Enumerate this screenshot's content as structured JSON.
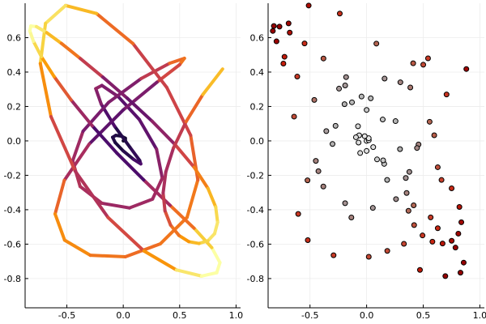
{
  "figure": {
    "background": "#ffffff",
    "grid_color": "#ececec",
    "axis_color": "#000000"
  },
  "chart_data": [
    {
      "type": "line",
      "title": "",
      "xlabel": "",
      "ylabel": "",
      "grid": true,
      "legend": "none",
      "xlim": [
        -0.87,
        1.04
      ],
      "ylim": [
        -0.97,
        0.8
      ],
      "xticks": [
        -0.5,
        0.0,
        0.5,
        1.0
      ],
      "yticks": [
        -0.8,
        -0.6,
        -0.4,
        -0.2,
        0.0,
        0.2,
        0.4,
        0.6
      ],
      "xtick_labels": [
        "-0.5",
        "0.0",
        "0.5",
        "1.0"
      ],
      "ytick_labels": [
        "-0.8",
        "-0.6",
        "-0.4",
        "-0.2",
        "0.0",
        "0.2",
        "0.4",
        "0.6"
      ],
      "line_width": "thick",
      "colormap": "inferno",
      "color_by": "radius",
      "curve": "Archimedean spiral r = t, theta = 6*pi*t, t from 0 to 1",
      "series": [
        {
          "x": [
            0.0,
            0.0188,
            0.0184,
            -0.0171,
            -0.0659,
            -0.0942,
            -0.0713,
            0.0,
            0.0922,
            0.1553,
            0.1457,
            0.0582,
            -0.0761,
            -0.195,
            -0.2436,
            -0.1895,
            -0.0448,
            0.1422,
            0.2949,
            0.346,
            0.2596,
            0.055,
            -0.19,
            -0.3823,
            -0.4485,
            -0.3561,
            -0.1294,
            0.1586,
            0.4111,
            0.5424,
            0.5002,
            0.2981,
            0.0,
            -0.3012,
            -0.5222,
            -0.6041,
            -0.5197,
            -0.292,
            0.0189,
            0.3294,
            0.5656,
            0.6614,
            0.5971,
            0.3859,
            0.0861,
            -0.237,
            -0.5117,
            -0.6891,
            -0.735,
            -0.6406,
            -0.4257,
            -0.1347,
            0.1825,
            0.471,
            0.6952,
            0.8289,
            0.8572,
            0.7847,
            0.6282,
            0.4154,
            0.1812,
            -0.057,
            -0.2744,
            -0.4621,
            -0.6126,
            -0.7252,
            -0.796,
            -0.8282,
            -0.8192,
            -0.7695,
            -0.6791,
            -0.5481,
            -0.3811,
            -0.1812,
            0.0363,
            0.2553,
            0.4584,
            0.6281,
            0.7506,
            0.8194,
            0.8365,
            0.81,
            0.751,
            0.6707,
            0.5811,
            0.4936,
            0.4195,
            0.3698,
            0.3534,
            0.3774,
            0.445,
            0.5564,
            0.706,
            0.8807,
            1.0
          ],
          "y": [
            0.0,
            0.0041,
            0.0154,
            0.0276,
            0.032,
            0.0212,
            -0.0096,
            -0.0583,
            -0.1076,
            -0.1336,
            -0.1133,
            -0.0361,
            0.0849,
            0.2133,
            0.3037,
            0.3223,
            0.2578,
            0.1243,
            -0.0478,
            -0.2158,
            -0.3384,
            -0.3895,
            -0.3622,
            -0.2649,
            -0.1161,
            0.0567,
            0.2242,
            0.362,
            0.4512,
            0.48,
            0.4429,
            0.3407,
            0.18,
            -0.018,
            -0.2292,
            -0.4246,
            -0.5768,
            -0.6645,
            -0.6735,
            -0.598,
            -0.4444,
            -0.227,
            0.0327,
            0.3105,
            0.5654,
            0.7401,
            0.7867,
            0.683,
            0.4493,
            0.1412,
            -0.176,
            -0.4451,
            -0.6393,
            -0.7499,
            -0.7858,
            -0.7659,
            -0.7073,
            -0.6201,
            -0.5076,
            -0.3746,
            -0.2268,
            -0.0705,
            0.0875,
            0.238,
            0.3738,
            0.4889,
            0.5785,
            0.639,
            0.6677,
            0.664,
            0.6295,
            0.5665,
            0.4789,
            0.3707,
            0.2475,
            0.1148,
            -0.0207,
            -0.153,
            -0.2758,
            -0.3838,
            -0.4727,
            -0.539,
            -0.5806,
            -0.5962,
            -0.5856,
            -0.5495,
            -0.4892,
            -0.4063,
            -0.3026,
            -0.1801,
            -0.0412,
            0.1112,
            0.2698,
            0.4177,
            0.0
          ]
        }
      ]
    },
    {
      "type": "scatter",
      "title": "",
      "xlabel": "",
      "ylabel": "",
      "grid": true,
      "legend": "none",
      "xlim": [
        -0.87,
        1.04
      ],
      "ylim": [
        -0.97,
        0.8
      ],
      "xticks": [
        -0.5,
        0.0,
        0.5,
        1.0
      ],
      "yticks": [
        -0.8,
        -0.6,
        -0.4,
        -0.2,
        0.0,
        0.2,
        0.4,
        0.6
      ],
      "xtick_labels": [
        "-0.5",
        "0.0",
        "0.5",
        "1.0"
      ],
      "ytick_labels": [
        "-0.8",
        "-0.6",
        "-0.4",
        "-0.2",
        "0.0",
        "0.2",
        "0.4",
        "0.6"
      ],
      "marker": "circle",
      "marker_edge_color": "#000000",
      "colormap": "grayscale-to-red",
      "color_by": "radius",
      "curve": "Archimedean spiral r = t, theta = 6*pi*t, t from 0 to 1",
      "series": [
        {
          "x": [
            0.0,
            0.0188,
            0.0184,
            -0.0171,
            -0.0659,
            -0.0942,
            -0.0713,
            0.0,
            0.0922,
            0.1553,
            0.1457,
            0.0582,
            -0.0761,
            -0.195,
            -0.2436,
            -0.1895,
            -0.0448,
            0.1422,
            0.2949,
            0.346,
            0.2596,
            0.055,
            -0.19,
            -0.3823,
            -0.4485,
            -0.3561,
            -0.1294,
            0.1586,
            0.4111,
            0.5424,
            0.5002,
            0.2981,
            0.0,
            -0.3012,
            -0.5222,
            -0.6041,
            -0.5197,
            -0.292,
            0.0189,
            0.3294,
            0.5656,
            0.6614,
            0.5971,
            0.3859,
            0.0861,
            -0.237,
            -0.5117,
            -0.6891,
            -0.735,
            -0.6406,
            -0.4257,
            -0.1347,
            0.1825,
            0.471,
            0.6952,
            0.8289,
            0.8572,
            0.7847,
            0.6282,
            0.4154,
            0.1812,
            -0.057,
            -0.2744,
            -0.4621,
            -0.6126,
            -0.7252,
            -0.796,
            -0.8282,
            -0.8192,
            -0.7695,
            -0.6791,
            -0.5481,
            -0.3811,
            -0.1812,
            0.0363,
            0.2553,
            0.4584,
            0.6281,
            0.7506,
            0.8194,
            0.8365,
            0.81,
            0.751,
            0.6707,
            0.5811,
            0.4936,
            0.4195,
            0.3698,
            0.3534,
            0.3774,
            0.445,
            0.5564,
            0.706,
            0.8807,
            1.0
          ],
          "y": [
            0.0,
            0.0041,
            0.0154,
            0.0276,
            0.032,
            0.0212,
            -0.0096,
            -0.0583,
            -0.1076,
            -0.1336,
            -0.1133,
            -0.0361,
            0.0849,
            0.2133,
            0.3037,
            0.3223,
            0.2578,
            0.1243,
            -0.0478,
            -0.2158,
            -0.3384,
            -0.3895,
            -0.3622,
            -0.2649,
            -0.1161,
            0.0567,
            0.2242,
            0.362,
            0.4512,
            0.48,
            0.4429,
            0.3407,
            0.18,
            -0.018,
            -0.2292,
            -0.4246,
            -0.5768,
            -0.6645,
            -0.6735,
            -0.598,
            -0.4444,
            -0.227,
            0.0327,
            0.3105,
            0.5654,
            0.7401,
            0.7867,
            0.683,
            0.4493,
            0.1412,
            -0.176,
            -0.4451,
            -0.6393,
            -0.7499,
            -0.7858,
            -0.7659,
            -0.7073,
            -0.6201,
            -0.5076,
            -0.3746,
            -0.2268,
            -0.0705,
            0.0875,
            0.238,
            0.3738,
            0.4889,
            0.5785,
            0.639,
            0.6677,
            0.664,
            0.6295,
            0.5665,
            0.4789,
            0.3707,
            0.2475,
            0.1148,
            -0.0207,
            -0.153,
            -0.2758,
            -0.3838,
            -0.4727,
            -0.539,
            -0.5806,
            -0.5962,
            -0.5856,
            -0.5495,
            -0.4892,
            -0.4063,
            -0.3026,
            -0.1801,
            -0.0412,
            0.1112,
            0.2698,
            0.4177,
            0.0
          ]
        }
      ]
    }
  ]
}
